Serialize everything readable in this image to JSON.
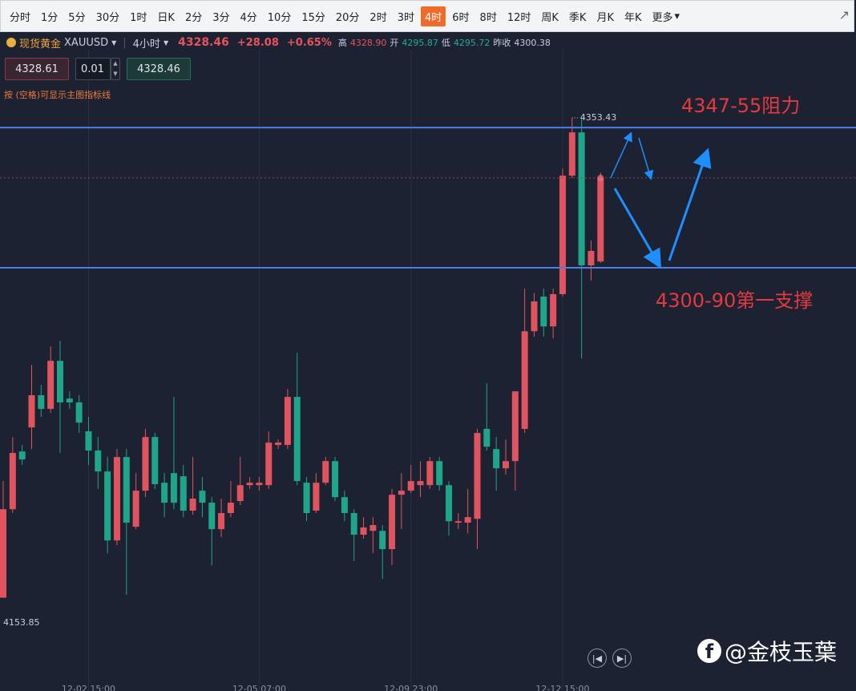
{
  "toolbar": {
    "items": [
      "分时",
      "1分",
      "5分",
      "30分",
      "1时",
      "日K",
      "2分",
      "3分",
      "4分",
      "10分",
      "15分",
      "20分",
      "2时",
      "3时",
      "4时",
      "6时",
      "8时",
      "12时",
      "周K",
      "季K",
      "月K",
      "年K",
      "更多"
    ],
    "selected": "4时"
  },
  "header": {
    "name": "现货黄金",
    "symbol": "XAUUSD",
    "period": "4小时",
    "price": "4328.46",
    "change": "+28.08",
    "change_pct": "+0.65%",
    "high_label": "高",
    "high": "4328.90",
    "open_label": "开",
    "open": "4295.87",
    "low_label": "低",
    "low": "4295.72",
    "prev_label": "昨收",
    "prev": "4300.38"
  },
  "order": {
    "sell": "4328.61",
    "lots": "0.01",
    "buy": "4328.46",
    "hint": "按 (空格)可显示主图指标线"
  },
  "watermark": "@金枝玉葉",
  "chart_data": {
    "type": "candlestick",
    "up_color": "#e0535f",
    "down_color": "#1fa58a",
    "categories": [
      null,
      null,
      null,
      null,
      null,
      null,
      null,
      null,
      null,
      "12-02 15:00",
      null,
      null,
      null,
      null,
      null,
      null,
      null,
      null,
      null,
      null,
      null,
      null,
      null,
      null,
      null,
      null,
      null,
      "12-05 07:00",
      null,
      null,
      null,
      null,
      null,
      null,
      null,
      null,
      null,
      null,
      null,
      null,
      null,
      null,
      null,
      "12-09 23:00",
      null,
      null,
      null,
      null,
      null,
      null,
      null,
      null,
      null,
      null,
      null,
      null,
      null,
      null,
      null,
      "12-12 15:00",
      null,
      null,
      null,
      null
    ],
    "open": [
      4153.9,
      4190.7,
      4214.7,
      4224.7,
      4238.1,
      4232.4,
      4252.4,
      4236.7,
      4235.1,
      4223.1,
      4215.1,
      4206.4,
      4177.7,
      4212.4,
      4183.4,
      4198.4,
      4220.7,
      4201.7,
      4205.7,
      4204.4,
      4190.1,
      4198.4,
      4193.4,
      4182.4,
      4189.1,
      4194.1,
      4200.7,
      4200.7,
      4200.7,
      4217.4,
      4217.4,
      4237.4,
      4201.7,
      4190.1,
      4201.7,
      4210.7,
      4195.7,
      4189.1,
      4180.1,
      4181.7,
      4181.7,
      4174.1,
      4196.7,
      4198.4,
      4200.7,
      4200.7,
      4210.7,
      4200.7,
      4185.1,
      4185.1,
      4186.7,
      4224.1,
      4215.7,
      4207.7,
      4210.7,
      4224.1,
      4264.7,
      4279.1,
      4266.7,
      4280.1,
      4329.4,
      4347.4,
      4292.1,
      4293.7
    ],
    "high": [
      4202.4,
      4220.7,
      4217.4,
      4250.7,
      4242.4,
      4258.4,
      4260.7,
      4239.7,
      4238.1,
      4229.1,
      4220.7,
      4212.4,
      4215.7,
      4215.7,
      4205.7,
      4224.1,
      4222.4,
      4205.7,
      4237.4,
      4209.1,
      4212.4,
      4204.1,
      4195.7,
      4195.1,
      4202.4,
      4212.4,
      4204.1,
      4204.1,
      4223.1,
      4219.7,
      4240.7,
      4255.7,
      4204.1,
      4205.7,
      4212.4,
      4212.4,
      4198.4,
      4190.7,
      4187.4,
      4187.4,
      4184.1,
      4199.1,
      4205.7,
      4209.1,
      4210.7,
      4212.4,
      4212.4,
      4202.4,
      4189.1,
      4199.1,
      4224.1,
      4243.1,
      4220.7,
      4219.7,
      4239.7,
      4282.4,
      4280.7,
      4282.4,
      4282.4,
      4332.4,
      4353.43,
      4353.4,
      4302.4,
      4330.7
    ],
    "low": [
      4153.85,
      4189.1,
      4209.1,
      4215.7,
      4229.1,
      4230.7,
      4214.1,
      4232.4,
      4222.4,
      4209.1,
      4199.1,
      4172.4,
      4175.7,
      4155.1,
      4182.4,
      4195.7,
      4199.1,
      4187.4,
      4190.7,
      4187.4,
      4188.4,
      4187.4,
      4167.4,
      4179.1,
      4187.4,
      4192.4,
      4199.1,
      4198.4,
      4199.1,
      4215.7,
      4215.7,
      4200.7,
      4185.7,
      4189.1,
      4200.7,
      4194.1,
      4185.7,
      4169.1,
      4178.4,
      4172.4,
      4161.7,
      4167.4,
      4182.4,
      4197.4,
      4195.7,
      4199.1,
      4198.4,
      4179.7,
      4182.4,
      4180.7,
      4174.1,
      4215.1,
      4198.4,
      4205.1,
      4198.4,
      4222.4,
      4262.4,
      4262.4,
      4261.7,
      4279.1,
      4328.4,
      4253.4,
      4285.7,
      4293.1
    ],
    "close": [
      4190.7,
      4214.1,
      4211.4,
      4238.1,
      4232.4,
      4252.4,
      4235.1,
      4235.1,
      4226.7,
      4215.1,
      4206.4,
      4177.7,
      4212.4,
      4185.1,
      4198.4,
      4220.7,
      4201.1,
      4193.4,
      4193.4,
      4190.1,
      4195.1,
      4193.4,
      4182.4,
      4189.1,
      4193.4,
      4200.7,
      4201.7,
      4201.7,
      4218.4,
      4218.4,
      4237.4,
      4202.4,
      4189.1,
      4201.7,
      4210.7,
      4195.7,
      4189.1,
      4180.1,
      4183.1,
      4184.1,
      4174.1,
      4196.7,
      4198.4,
      4202.4,
      4202.4,
      4210.7,
      4200.7,
      4185.7,
      4185.7,
      4187.4,
      4222.4,
      4216.7,
      4207.7,
      4210.7,
      4239.7,
      4264.7,
      4277.1,
      4266.7,
      4280.1,
      4329.4,
      4347.4,
      4292.1,
      4298.1,
      4328.46
    ],
    "ylim": [
      4119.1,
      4379.1
    ],
    "levels": [
      {
        "value": 4349.4,
        "color": "#4a7fe6"
      },
      {
        "value": 4291.1,
        "color": "#4a7fe6"
      }
    ],
    "annotations": [
      {
        "text": "4347-55阻力",
        "color": "#e5393f"
      },
      {
        "text": "4300-90第一支撑",
        "color": "#e5393f"
      }
    ]
  }
}
